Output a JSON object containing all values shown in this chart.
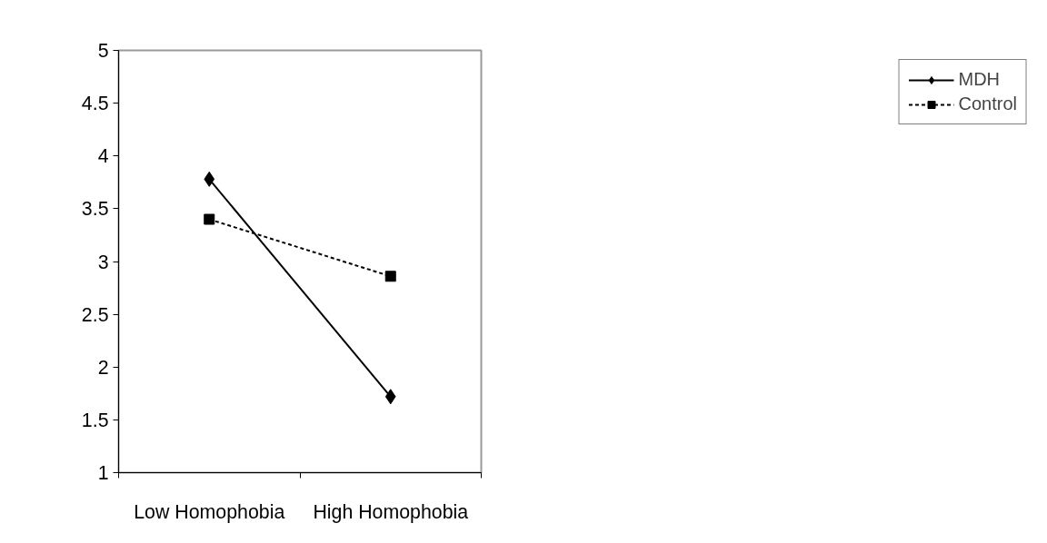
{
  "chart_data": {
    "type": "line",
    "categories": [
      "Low Homophobia",
      "High Homophobia"
    ],
    "series": [
      {
        "name": "MDH",
        "color": "#000000",
        "values": [
          3.78,
          1.72
        ],
        "marker": "diamond",
        "line_style": "solid"
      },
      {
        "name": "Control",
        "color": "#000000",
        "values": [
          3.4,
          2.86
        ],
        "marker": "square",
        "line_style": "dashed"
      }
    ],
    "ylim": [
      1,
      5
    ],
    "yticks": [
      1,
      1.5,
      2,
      2.5,
      3,
      3.5,
      4,
      4.5,
      5
    ],
    "grid": false,
    "legend": "right"
  }
}
